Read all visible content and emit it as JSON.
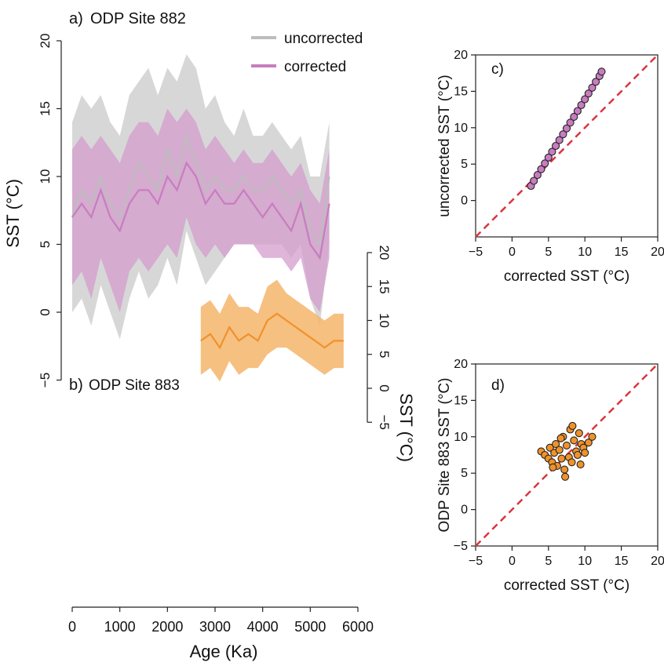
{
  "colors": {
    "uncorrected": "#bdbdbd",
    "corrected": "#c77dbf",
    "corrected_band": "#d49ccd",
    "site883": "#f0922a",
    "site883_band": "#f5b56b",
    "one_to_one": "#d9363e",
    "axis": "#222222"
  },
  "chart_data": [
    {
      "id": "a",
      "type": "area",
      "panel_label": "a)",
      "title": "ODP Site 882",
      "xlabel": "Age (Ka)",
      "ylabel": "SST (°C)",
      "xlim": [
        0,
        6000
      ],
      "ylim": [
        -5,
        20
      ],
      "xticks": [
        "0",
        "1000",
        "2000",
        "3000",
        "4000",
        "5000",
        "6000"
      ],
      "yticks": [
        "−5",
        "0",
        "5",
        "10",
        "15",
        "20"
      ],
      "legend": {
        "position": "top-center",
        "entries": [
          "uncorrected",
          "corrected"
        ]
      },
      "x": [
        0,
        200,
        400,
        600,
        800,
        1000,
        1200,
        1400,
        1600,
        1800,
        2000,
        2200,
        2400,
        2600,
        2800,
        3000,
        3200,
        3400,
        3600,
        3800,
        4000,
        4200,
        4400,
        4600,
        4800,
        5000,
        5200,
        5400
      ],
      "series": [
        {
          "name": "uncorrected",
          "values": [
            7,
            9,
            8,
            10,
            8,
            7,
            9,
            11,
            10,
            9,
            12,
            10,
            13,
            11,
            9,
            10,
            9,
            9,
            10,
            9,
            9,
            10,
            9,
            8,
            9,
            6,
            5,
            10
          ],
          "upper": [
            14,
            16,
            15,
            16,
            14,
            13,
            16,
            17,
            18,
            16,
            18,
            17,
            19,
            18,
            15,
            16,
            14,
            13,
            15,
            13,
            13,
            14,
            13,
            12,
            13,
            10,
            10,
            14
          ],
          "lower": [
            0,
            1,
            -1,
            2,
            0,
            -2,
            1,
            3,
            1,
            2,
            4,
            2,
            6,
            4,
            2,
            3,
            4,
            5,
            5,
            5,
            5,
            5,
            5,
            4,
            5,
            1,
            -1,
            5
          ]
        },
        {
          "name": "corrected",
          "values": [
            7,
            8,
            7,
            9,
            7,
            6,
            8,
            9,
            9,
            8,
            10,
            9,
            11,
            10,
            8,
            9,
            8,
            8,
            9,
            8,
            7,
            8,
            7,
            6,
            8,
            5,
            4,
            8
          ],
          "upper": [
            12,
            13,
            12,
            13,
            12,
            11,
            13,
            14,
            14,
            13,
            15,
            14,
            15,
            14,
            12,
            13,
            12,
            11,
            12,
            11,
            11,
            12,
            11,
            10,
            11,
            9,
            8,
            12
          ],
          "lower": [
            2,
            3,
            1,
            4,
            2,
            0,
            3,
            4,
            3,
            4,
            5,
            4,
            7,
            5,
            4,
            5,
            4,
            5,
            5,
            5,
            4,
            4,
            4,
            3,
            4,
            1,
            0,
            4
          ]
        }
      ]
    },
    {
      "id": "b",
      "type": "area",
      "panel_label": "b)",
      "title": "ODP Site 883",
      "xlabel": "Age (Ka)",
      "ylabel": "SST (°C)",
      "xlim": [
        0,
        6000
      ],
      "ylim": [
        -5,
        20
      ],
      "yticks": [
        "−5",
        "0",
        "5",
        "10",
        "15",
        "20"
      ],
      "x": [
        2700,
        2900,
        3100,
        3300,
        3500,
        3700,
        3900,
        4100,
        4300,
        4500,
        4700,
        4900,
        5100,
        5300,
        5500,
        5700
      ],
      "series": [
        {
          "name": "ODP Site 883",
          "values": [
            7,
            8,
            6,
            9,
            7,
            8,
            7,
            10,
            11,
            10,
            9,
            8,
            7,
            6,
            7,
            7
          ],
          "upper": [
            12,
            13,
            11,
            14,
            12,
            12,
            11,
            15,
            16,
            14,
            13,
            12,
            11,
            10,
            11,
            11
          ],
          "lower": [
            2,
            3,
            1,
            4,
            2,
            3,
            3,
            5,
            6,
            6,
            5,
            4,
            3,
            2,
            3,
            3
          ]
        }
      ]
    },
    {
      "id": "c",
      "type": "scatter",
      "panel_label": "c)",
      "xlabel": "corrected SST (°C)",
      "ylabel": "uncorrected SST (°C)",
      "xlim": [
        -5,
        20
      ],
      "ylim": [
        -5,
        20
      ],
      "xticks": [
        "−5",
        "0",
        "5",
        "10",
        "15",
        "20"
      ],
      "yticks": [
        "0",
        "5",
        "10",
        "15",
        "20"
      ],
      "one_to_one_line": true,
      "x": [
        2.6,
        3.0,
        3.5,
        4.0,
        4.5,
        5.0,
        5.5,
        6.0,
        6.5,
        7.0,
        7.5,
        8.0,
        8.5,
        9.0,
        9.5,
        10.0,
        10.5,
        11.0,
        11.5,
        12.0,
        12.3
      ],
      "y": [
        2.0,
        2.7,
        3.5,
        4.3,
        5.1,
        5.9,
        6.7,
        7.5,
        8.3,
        9.1,
        9.9,
        10.7,
        11.5,
        12.3,
        13.1,
        13.9,
        14.7,
        15.5,
        16.3,
        17.1,
        17.7
      ]
    },
    {
      "id": "d",
      "type": "scatter",
      "panel_label": "d)",
      "xlabel": "corrected SST (°C)",
      "ylabel": "ODP Site 883 SST (°C)",
      "xlim": [
        -5,
        20
      ],
      "ylim": [
        -5,
        20
      ],
      "xticks": [
        "−5",
        "0",
        "5",
        "10",
        "15",
        "20"
      ],
      "yticks": [
        "−5",
        "0",
        "5",
        "10",
        "15",
        "20"
      ],
      "one_to_one_line": true,
      "x": [
        4.0,
        4.5,
        5.0,
        5.2,
        5.5,
        5.8,
        6.0,
        6.2,
        6.5,
        6.8,
        7.0,
        7.2,
        7.5,
        7.8,
        8.0,
        8.2,
        8.5,
        8.8,
        9.0,
        9.2,
        9.5,
        9.8,
        10.0,
        10.5,
        11.0,
        7.3,
        8.3,
        6.7,
        9.4,
        5.6
      ],
      "y": [
        8.0,
        7.5,
        7.0,
        8.5,
        6.5,
        7.8,
        9.0,
        6.0,
        8.2,
        7.0,
        10.0,
        5.5,
        8.8,
        7.2,
        11.0,
        6.5,
        9.5,
        8.0,
        7.5,
        10.5,
        9.0,
        8.5,
        7.8,
        9.2,
        10.0,
        4.5,
        11.5,
        9.8,
        6.2,
        5.8
      ]
    }
  ]
}
